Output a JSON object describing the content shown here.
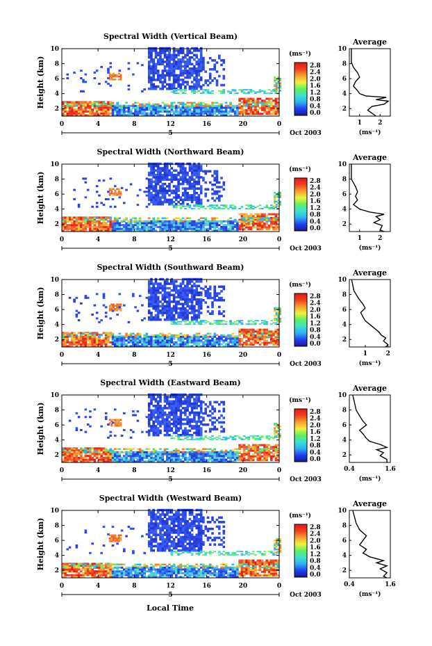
{
  "figure": {
    "xlabel": "Local Time",
    "date_label": "Oct 2003",
    "colorbar_unit": "(ms⁻¹)",
    "avg_title": "Average",
    "avg_unit": "(ms⁻¹)",
    "colorbar_ticks": [
      "2.8",
      "2.4",
      "2.0",
      "1.6",
      "1.2",
      "0.8",
      "0.4",
      "0.0"
    ],
    "colorbar_stops": [
      "#1a1a90",
      "#2040f0",
      "#30b0f0",
      "#40e0d0",
      "#60f060",
      "#f0f040",
      "#f8a030",
      "#f04020",
      "#e01818"
    ]
  },
  "chart_data": [
    {
      "type": "heatmap",
      "title": "Spectral Width (Vertical Beam)",
      "ylabel": "Height (km)",
      "x_ticks": [
        "0",
        "4",
        "8",
        "12",
        "16",
        "20",
        "0"
      ],
      "x_sub_label": "5",
      "y_ticks": [
        "2",
        "4",
        "6",
        "8",
        "10"
      ],
      "xlim": [
        0,
        24
      ],
      "ylim": [
        1,
        10
      ],
      "avg_profile": {
        "xlim": [
          0.5,
          2.5
        ],
        "x_ticks": [
          "1",
          "2"
        ],
        "y_ticks": [
          "2",
          "4",
          "6",
          "8",
          "10"
        ],
        "points": [
          [
            0.6,
            10
          ],
          [
            0.6,
            8.2
          ],
          [
            0.7,
            7.5
          ],
          [
            0.9,
            6.8
          ],
          [
            1.0,
            6.2
          ],
          [
            0.8,
            5.6
          ],
          [
            0.7,
            5.0
          ],
          [
            0.9,
            4.4
          ],
          [
            1.0,
            4.0
          ],
          [
            1.3,
            3.7
          ],
          [
            2.3,
            3.5
          ],
          [
            1.8,
            3.2
          ],
          [
            2.4,
            3.0
          ],
          [
            2.2,
            2.6
          ],
          [
            1.6,
            2.3
          ],
          [
            1.4,
            1.8
          ],
          [
            1.7,
            1.2
          ],
          [
            1.8,
            1.0
          ]
        ]
      }
    },
    {
      "type": "heatmap",
      "title": "Spectral Width (Northward Beam)",
      "ylabel": "Height (km)",
      "x_ticks": [
        "0",
        "4",
        "8",
        "12",
        "16",
        "20",
        "0"
      ],
      "x_sub_label": "5",
      "y_ticks": [
        "2",
        "4",
        "6",
        "8",
        "10"
      ],
      "xlim": [
        0,
        24
      ],
      "ylim": [
        1,
        10
      ],
      "avg_profile": {
        "xlim": [
          0.5,
          2.5
        ],
        "x_ticks": [
          "1",
          "2"
        ],
        "y_ticks": [
          "2",
          "4",
          "6",
          "8",
          "10"
        ],
        "points": [
          [
            0.6,
            10
          ],
          [
            0.6,
            8.0
          ],
          [
            0.8,
            7.0
          ],
          [
            0.9,
            6.3
          ],
          [
            0.8,
            5.7
          ],
          [
            0.9,
            5.2
          ],
          [
            0.7,
            4.6
          ],
          [
            1.0,
            4.0
          ],
          [
            1.5,
            3.6
          ],
          [
            2.2,
            3.3
          ],
          [
            1.8,
            3.0
          ],
          [
            2.0,
            2.6
          ],
          [
            1.7,
            2.2
          ],
          [
            2.1,
            1.8
          ],
          [
            2.0,
            1.2
          ],
          [
            2.2,
            1.0
          ]
        ]
      }
    },
    {
      "type": "heatmap",
      "title": "Spectral Width (Southward Beam)",
      "ylabel": "Height (km)",
      "x_ticks": [
        "0",
        "4",
        "8",
        "12",
        "16",
        "20",
        "0"
      ],
      "x_sub_label": "5",
      "y_ticks": [
        "2",
        "4",
        "6",
        "8",
        "10"
      ],
      "xlim": [
        0,
        24
      ],
      "ylim": [
        1,
        10
      ],
      "avg_profile": {
        "xlim": [
          0.3,
          2.1
        ],
        "x_ticks": [
          "1",
          "2"
        ],
        "y_ticks": [
          "2",
          "4",
          "6",
          "8",
          "10"
        ],
        "points": [
          [
            0.4,
            10
          ],
          [
            0.5,
            8.5
          ],
          [
            0.7,
            7.5
          ],
          [
            0.9,
            6.7
          ],
          [
            1.0,
            6.2
          ],
          [
            0.8,
            5.6
          ],
          [
            0.9,
            5.0
          ],
          [
            1.0,
            4.5
          ],
          [
            1.2,
            4.0
          ],
          [
            1.4,
            3.5
          ],
          [
            1.6,
            3.0
          ],
          [
            1.7,
            2.6
          ],
          [
            1.9,
            2.2
          ],
          [
            1.8,
            1.8
          ],
          [
            2.0,
            1.3
          ],
          [
            1.9,
            1.0
          ]
        ]
      }
    },
    {
      "type": "heatmap",
      "title": "Spectral Width (Eastward Beam)",
      "ylabel": "Height (km)",
      "x_ticks": [
        "0",
        "4",
        "8",
        "12",
        "16",
        "20",
        "0"
      ],
      "x_sub_label": "5",
      "y_ticks": [
        "2",
        "4",
        "6",
        "8",
        "10"
      ],
      "xlim": [
        0,
        24
      ],
      "ylim": [
        1,
        10
      ],
      "avg_profile": {
        "xlim": [
          0.4,
          1.6
        ],
        "x_ticks": [
          "0.4",
          "1.6"
        ],
        "y_ticks": [
          "2",
          "4",
          "6",
          "8",
          "10"
        ],
        "points": [
          [
            0.5,
            10
          ],
          [
            0.6,
            8.0
          ],
          [
            0.7,
            7.2
          ],
          [
            0.8,
            6.5
          ],
          [
            0.9,
            6.0
          ],
          [
            0.7,
            5.3
          ],
          [
            0.8,
            4.8
          ],
          [
            0.9,
            4.2
          ],
          [
            1.0,
            3.8
          ],
          [
            1.3,
            3.4
          ],
          [
            1.5,
            3.0
          ],
          [
            1.2,
            2.7
          ],
          [
            1.4,
            2.3
          ],
          [
            1.3,
            1.9
          ],
          [
            1.5,
            1.4
          ],
          [
            1.5,
            1.0
          ]
        ]
      }
    },
    {
      "type": "heatmap",
      "title": "Spectral Width (Westward Beam)",
      "ylabel": "Height (km)",
      "x_ticks": [
        "0",
        "4",
        "8",
        "12",
        "16",
        "20",
        "0"
      ],
      "x_sub_label": "5",
      "y_ticks": [
        "2",
        "4",
        "6",
        "8",
        "10"
      ],
      "xlim": [
        0,
        24
      ],
      "ylim": [
        1,
        10
      ],
      "avg_profile": {
        "xlim": [
          0.4,
          1.6
        ],
        "x_ticks": [
          "0.4",
          "1.6"
        ],
        "y_ticks": [
          "2",
          "4",
          "6",
          "8",
          "10"
        ],
        "points": [
          [
            0.5,
            10
          ],
          [
            0.6,
            8.3
          ],
          [
            0.7,
            7.4
          ],
          [
            0.9,
            6.6
          ],
          [
            0.8,
            6.0
          ],
          [
            0.7,
            5.4
          ],
          [
            0.9,
            4.8
          ],
          [
            0.8,
            4.3
          ],
          [
            1.0,
            3.8
          ],
          [
            1.4,
            3.3
          ],
          [
            1.2,
            3.0
          ],
          [
            1.5,
            2.6
          ],
          [
            1.3,
            2.2
          ],
          [
            1.5,
            1.7
          ],
          [
            1.4,
            1.2
          ],
          [
            1.5,
            1.0
          ]
        ]
      }
    }
  ]
}
